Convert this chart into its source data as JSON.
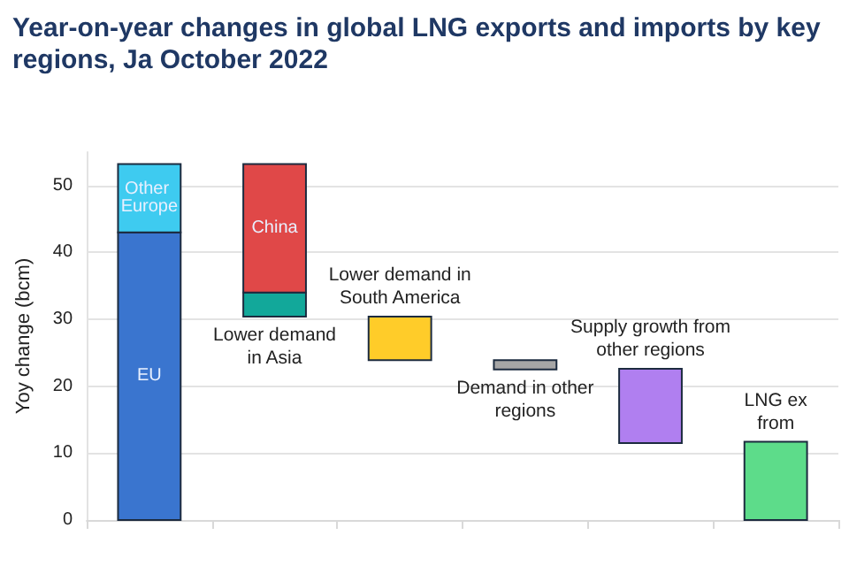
{
  "chart_data": {
    "type": "bar",
    "title": "Year-on-year changes in global LNG exports and imports by key regions, Ja October 2022",
    "ylabel": "Yoy change (bcm)",
    "categories": [
      null,
      "Lower demand\nin Asia",
      "Lower demand in\nSouth America",
      "Demand in other\nregions",
      "Supply growth from\nother regions",
      "LNG ex\nfrom"
    ],
    "series": [
      {
        "name": "EU",
        "color": "#3a75cf",
        "values": [
          43,
          null,
          null,
          null,
          null,
          null
        ],
        "base": [
          0,
          null,
          null,
          null,
          null,
          null
        ]
      },
      {
        "name": "Other Europe",
        "color": "#3ecbf0",
        "values": [
          10.2,
          null,
          null,
          null,
          null,
          null
        ],
        "base": [
          43,
          null,
          null,
          null,
          null,
          null
        ]
      },
      {
        "color": "#12a89a",
        "values": [
          null,
          3.6,
          null,
          null,
          null,
          null
        ],
        "base": [
          null,
          30.4,
          null,
          null,
          null,
          null
        ]
      },
      {
        "name": "China",
        "color": "#e04848",
        "values": [
          null,
          19.2,
          null,
          null,
          null,
          null
        ],
        "base": [
          null,
          34,
          null,
          null,
          null,
          null
        ]
      },
      {
        "color": "#ffcc29",
        "values": [
          null,
          null,
          6.5,
          null,
          null,
          null
        ],
        "base": [
          null,
          null,
          23.9,
          null,
          null,
          null
        ]
      },
      {
        "color": "#a6a6a6",
        "values": [
          null,
          null,
          null,
          1.4,
          null,
          null
        ],
        "base": [
          null,
          null,
          null,
          22.5,
          null,
          null
        ]
      },
      {
        "color": "#b07ff0",
        "values": [
          null,
          null,
          null,
          null,
          11.1,
          null
        ],
        "base": [
          null,
          null,
          null,
          null,
          11.5,
          null
        ]
      },
      {
        "color": "#5ddc8a",
        "values": [
          null,
          null,
          null,
          null,
          null,
          11.7
        ],
        "base": [
          null,
          null,
          null,
          null,
          null,
          0
        ]
      }
    ],
    "ylim": [
      0,
      55
    ],
    "yticks": [
      0,
      10,
      20,
      30,
      40,
      50
    ],
    "grid": "y"
  }
}
